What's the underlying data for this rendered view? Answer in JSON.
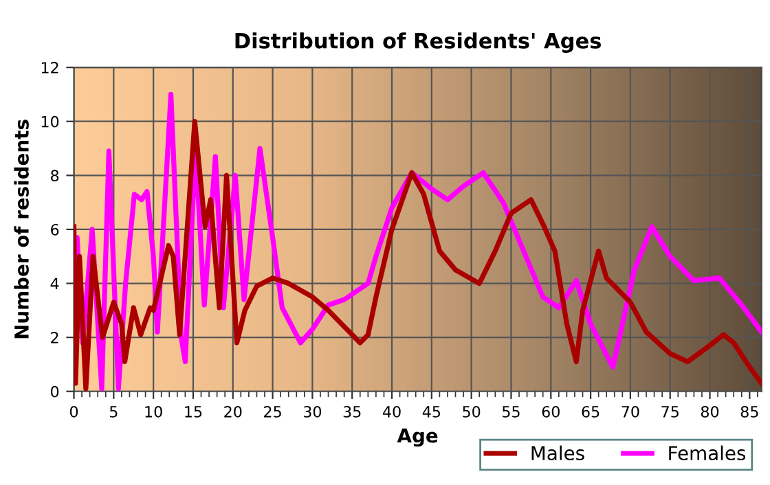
{
  "chart_data": {
    "type": "line",
    "title": "Distribution of Residents' Ages",
    "xlabel": "Age",
    "ylabel": "Number of residents",
    "xlim": [
      0,
      86.5
    ],
    "xticks": [
      0,
      5,
      10,
      15,
      20,
      25,
      30,
      35,
      40,
      45,
      50,
      55,
      60,
      65,
      70,
      75,
      80,
      85
    ],
    "ylim": [
      0,
      12
    ],
    "yticks": [
      0,
      2,
      4,
      6,
      8,
      10,
      12
    ],
    "grid": true,
    "legend": "bottom right",
    "marker": "none",
    "line_style": "solid",
    "series": [
      {
        "name": "Males",
        "color": "#aa0000",
        "x": [
          0,
          0.2,
          0.7,
          1.5,
          2.4,
          3.6,
          5,
          6,
          6.4,
          7.5,
          8.4,
          9.6,
          10,
          11.9,
          12.5,
          13.3,
          15.2,
          16.5,
          17.2,
          18.3,
          19.2,
          20.5,
          21.5,
          23,
          25,
          27,
          30,
          32,
          34,
          36,
          37,
          38,
          40,
          42.5,
          44,
          46,
          48,
          51,
          53,
          55,
          57.5,
          59,
          60.5,
          62,
          63.2,
          64,
          66,
          67,
          70,
          72,
          75,
          77.2,
          80,
          81.7,
          83,
          85,
          86.5
        ],
        "values": [
          6.1,
          0.3,
          5.0,
          0.1,
          5.0,
          2.0,
          3.3,
          2.5,
          1.1,
          3.1,
          2.1,
          3.1,
          3.0,
          5.4,
          5.0,
          2.1,
          10.0,
          6.1,
          7.1,
          3.1,
          8.0,
          1.8,
          3.0,
          3.9,
          4.2,
          4.0,
          3.5,
          3.0,
          2.4,
          1.8,
          2.1,
          3.5,
          6.0,
          8.1,
          7.3,
          5.2,
          4.5,
          4.0,
          5.2,
          6.6,
          7.1,
          6.2,
          5.2,
          2.5,
          1.1,
          3.0,
          5.2,
          4.2,
          3.3,
          2.2,
          1.4,
          1.1,
          1.7,
          2.1,
          1.8,
          0.9,
          0.3
        ]
      },
      {
        "name": "Females",
        "color": "#ff00ff",
        "x": [
          0,
          0.4,
          1.1,
          2.3,
          3.5,
          4.4,
          5.6,
          6.5,
          7.6,
          8.5,
          9.2,
          10,
          10.5,
          12.2,
          13.5,
          14,
          15.3,
          16.4,
          17.8,
          18.8,
          20.3,
          21.4,
          23.4,
          25,
          26.2,
          28.5,
          30,
          32,
          34,
          37,
          38,
          40,
          42.5,
          45,
          47,
          49,
          51.5,
          54,
          56,
          58,
          59,
          61,
          63.2,
          65,
          67.8,
          69,
          70.5,
          72.7,
          75,
          78,
          81.2,
          84,
          86.5
        ],
        "values": [
          4.0,
          5.7,
          1.8,
          6.0,
          0.1,
          8.9,
          0.1,
          4.0,
          7.3,
          7.1,
          7.4,
          5.0,
          2.2,
          11.0,
          2.0,
          1.1,
          9.0,
          3.2,
          8.7,
          3.1,
          8.0,
          3.4,
          9.0,
          5.7,
          3.1,
          1.8,
          2.3,
          3.2,
          3.4,
          4.0,
          5.0,
          6.8,
          8.1,
          7.5,
          7.1,
          7.6,
          8.1,
          7.0,
          5.6,
          4.2,
          3.5,
          3.1,
          4.1,
          2.5,
          0.9,
          2.5,
          4.5,
          6.1,
          5.0,
          4.1,
          4.2,
          3.2,
          2.2
        ]
      }
    ]
  }
}
